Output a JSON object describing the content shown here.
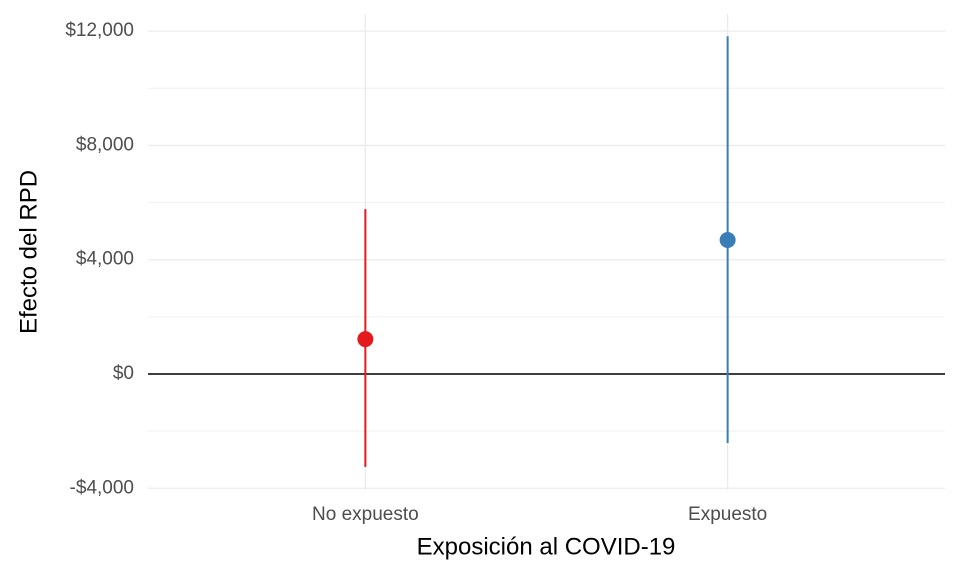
{
  "chart_data": {
    "type": "pointrange",
    "x_label": "Exposición al COVID-19",
    "y_label": "Efecto del RPD",
    "categories": [
      "No expuesto",
      "Expuesto"
    ],
    "values": [
      1220,
      4690
    ],
    "lower": [
      -3250,
      -2420
    ],
    "upper": [
      5770,
      11820
    ],
    "colors": [
      "#e41a1c",
      "#377eb8"
    ],
    "ylim": [
      -4060,
      12600
    ],
    "yticks": [
      {
        "value": -4000,
        "label": "-$4,000"
      },
      {
        "value": 0,
        "label": "$0"
      },
      {
        "value": 4000,
        "label": "$4,000"
      },
      {
        "value": 8000,
        "label": "$8,000"
      },
      {
        "value": 12000,
        "label": "$12,000"
      }
    ],
    "minor_yticks": [
      -2000,
      2000,
      6000,
      10000
    ],
    "reference_line": 0,
    "grid": true
  }
}
